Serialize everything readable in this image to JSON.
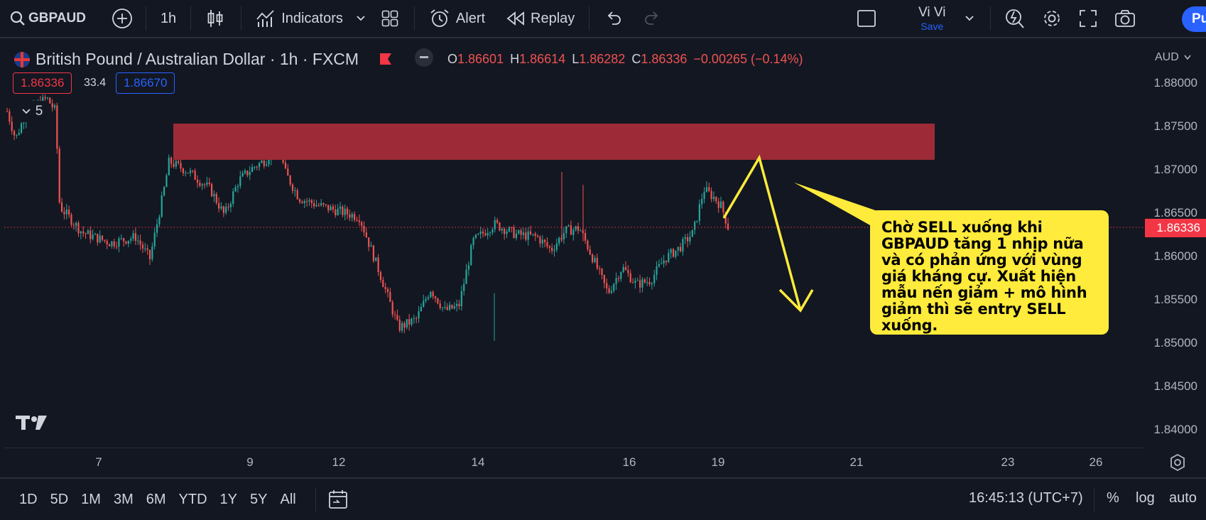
{
  "toolbar": {
    "symbol": "GBPAUD",
    "interval": "1h",
    "indicators_label": "Indicators",
    "alert_label": "Alert",
    "replay_label": "Replay",
    "user_name": "Vi Vi",
    "save_label": "Save",
    "publish_label": "Pu"
  },
  "legend": {
    "title": "British Pound / Australian Dollar · 1h · FXCM",
    "o_label": "O",
    "o_value": "1.86601",
    "h_label": "H",
    "h_value": "1.86614",
    "l_label": "L",
    "l_value": "1.86282",
    "c_label": "C",
    "c_value": "1.86336",
    "change": "−0.00265 (−0.14%)",
    "sell_price": "1.86336",
    "spread": "33.4",
    "buy_price": "1.86670",
    "indicator_count": "5"
  },
  "price_axis": {
    "currency": "AUD",
    "labels": [
      "1.88000",
      "1.87500",
      "1.87000",
      "1.86500",
      "1.86000",
      "1.85500",
      "1.85000",
      "1.84500",
      "1.84000"
    ],
    "current_price": "1.86336"
  },
  "time_axis": {
    "labels": [
      "7",
      "9",
      "12",
      "14",
      "16",
      "19",
      "21",
      "23",
      "26"
    ]
  },
  "annotation": {
    "text": "Chờ SELL xuống khi GBPAUD tăng 1 nhịp nữa và có phản ứng với vùng giá kháng cự. Xuất hiện mẫu nến giảm + mô hình giảm thì sẽ entry SELL xuống."
  },
  "bottom_bar": {
    "ranges": [
      "1D",
      "5D",
      "1M",
      "3M",
      "6M",
      "YTD",
      "1Y",
      "5Y",
      "All"
    ],
    "clock": "16:45:13 (UTC+7)",
    "percent_label": "%",
    "log_label": "log",
    "auto_label": "auto"
  },
  "colors": {
    "background": "#131722",
    "up": "#26a69a",
    "down": "#ef5350",
    "resistance_zone": "#9c2b37",
    "annotation": "#ffeb3b",
    "price_tag": "#f23645",
    "accent": "#2962ff"
  }
}
